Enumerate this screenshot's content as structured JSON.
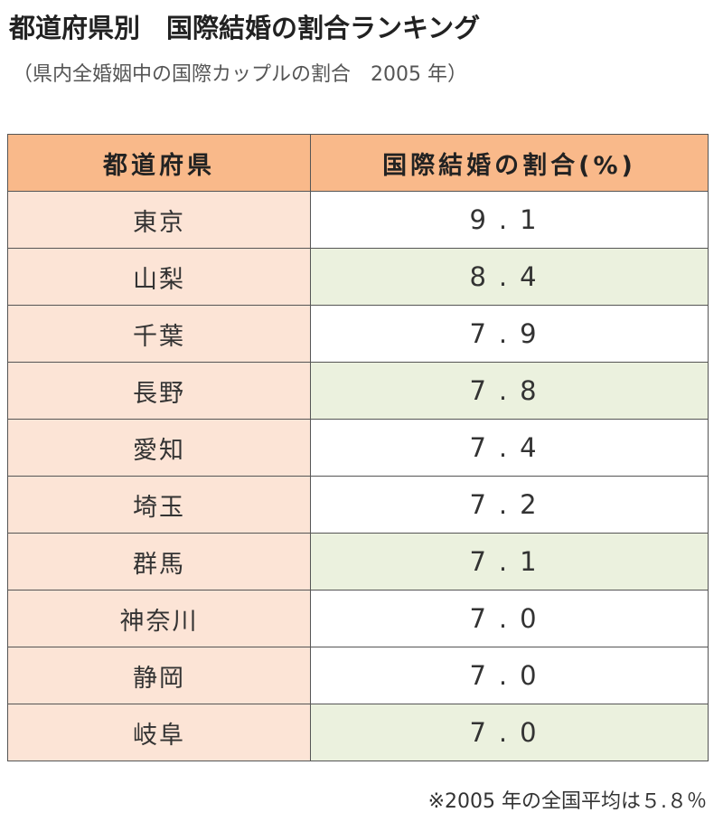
{
  "header": {
    "title": "都道府県別　国際結婚の割合ランキング",
    "subtitle": "（県内全婚姻中の国際カップルの割合　2005 年）"
  },
  "table": {
    "columns": [
      "都道府県",
      "国際結婚の割合(%)"
    ],
    "rows": [
      [
        "東京",
        "9.1"
      ],
      [
        "山梨",
        "8.4"
      ],
      [
        "千葉",
        "7.9"
      ],
      [
        "長野",
        "7.8"
      ],
      [
        "愛知",
        "7.4"
      ],
      [
        "埼玉",
        "7.2"
      ],
      [
        "群馬",
        "7.1"
      ],
      [
        "神奈川",
        "7.0"
      ],
      [
        "静岡",
        "7.0"
      ],
      [
        "岐阜",
        "7.0"
      ]
    ]
  },
  "note": "※2005 年の全国平均は５.８％"
}
